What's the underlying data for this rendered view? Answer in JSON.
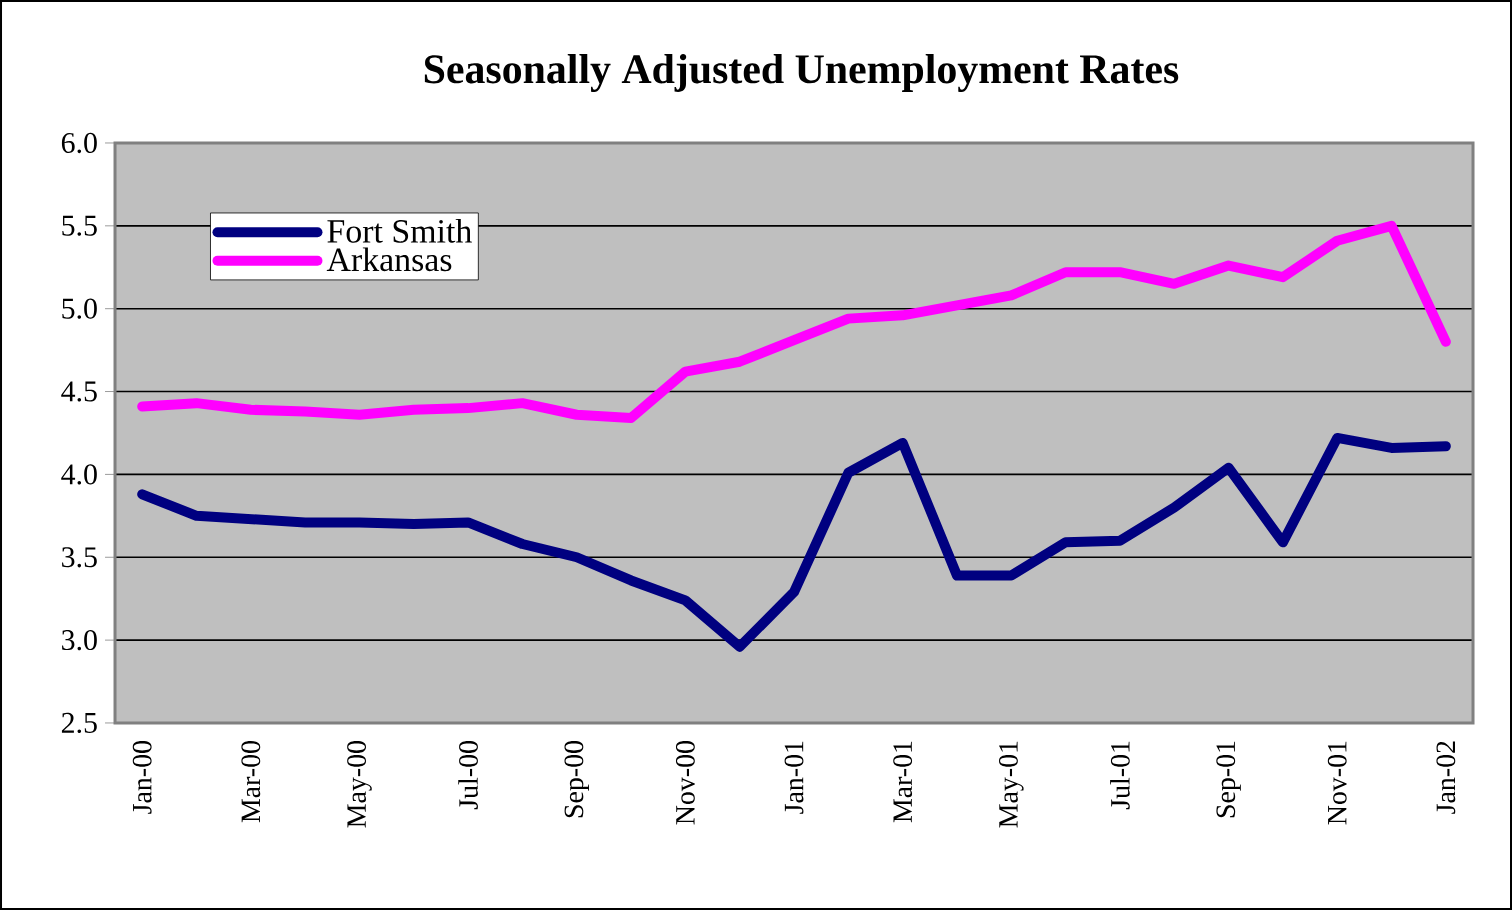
{
  "chart_data": {
    "type": "line",
    "title": "Seasonally Adjusted Unemployment Rates",
    "categories": [
      "Jan-00",
      null,
      "Mar-00",
      null,
      "May-00",
      null,
      "Jul-00",
      null,
      "Sep-00",
      null,
      "Nov-00",
      null,
      "Jan-01",
      null,
      "Mar-01",
      null,
      "May-01",
      null,
      "Jul-01",
      null,
      "Sep-01",
      null,
      "Nov-01",
      null,
      "Jan-02"
    ],
    "series": [
      {
        "name": "Fort Smith",
        "color": "#000080",
        "values": [
          3.88,
          3.75,
          3.73,
          3.71,
          3.71,
          3.7,
          3.71,
          3.58,
          3.5,
          3.36,
          3.24,
          2.96,
          3.29,
          4.01,
          4.19,
          3.39,
          3.39,
          3.59,
          3.6,
          3.8,
          4.04,
          3.59,
          4.22,
          4.16,
          4.17
        ]
      },
      {
        "name": "Arkansas",
        "color": "#ff00ff",
        "values": [
          4.41,
          4.43,
          4.39,
          4.38,
          4.36,
          4.39,
          4.4,
          4.43,
          4.36,
          4.34,
          4.62,
          4.68,
          4.81,
          4.94,
          4.96,
          5.02,
          5.08,
          5.22,
          5.22,
          5.15,
          5.26,
          5.19,
          5.41,
          5.5,
          4.8
        ]
      }
    ],
    "ylim": [
      2.5,
      6.0
    ],
    "yticks": [
      {
        "value": 2.5,
        "label": "2.5"
      },
      {
        "value": 3,
        "label": "3.0"
      },
      {
        "value": 3.5,
        "label": "3.5"
      },
      {
        "value": 4,
        "label": "4.0"
      },
      {
        "value": 4.5,
        "label": "4.5"
      },
      {
        "value": 5,
        "label": "5.0"
      },
      {
        "value": 5.5,
        "label": "5.5"
      },
      {
        "value": 6,
        "label": "6.0"
      }
    ],
    "grid": "y",
    "legend": "top left",
    "marker": "none",
    "line_style": "solid"
  }
}
